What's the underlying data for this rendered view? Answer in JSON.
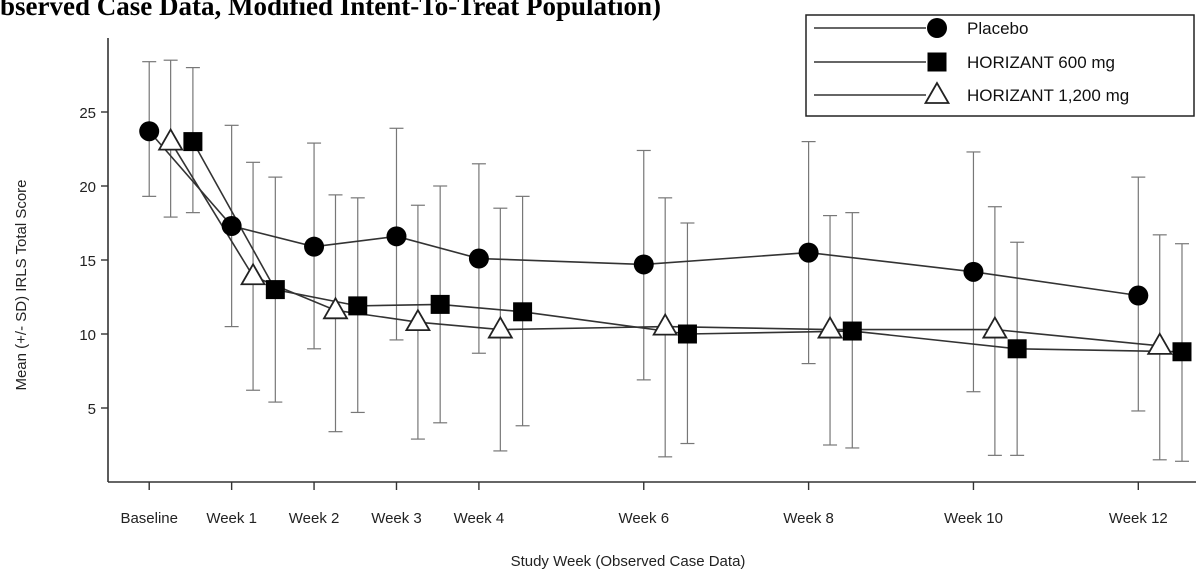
{
  "page": {
    "cut_title": "bserved Case Data, Modified Intent-To-Treat Population)"
  },
  "chart_data": {
    "type": "line",
    "xlabel": "Study Week (Observed Case Data)",
    "ylabel": "Mean (+/- SD) IRLS Total Score",
    "categories": [
      "Baseline",
      "Week 1",
      "Week 2",
      "Week 3",
      "Week 4",
      "Week 6",
      "Week 8",
      "Week 10",
      "Week 12"
    ],
    "x_weeks": [
      0,
      1,
      2,
      3,
      4,
      6,
      8,
      10,
      12
    ],
    "yticks": [
      5,
      10,
      15,
      20,
      25
    ],
    "ylim": [
      0,
      30
    ],
    "xlim": [
      -0.5,
      12.7
    ],
    "grid": false,
    "legend_position": "top-right",
    "series": [
      {
        "name": "Placebo",
        "marker": "circle",
        "offset": 0,
        "values": [
          23.7,
          17.3,
          15.9,
          16.6,
          15.1,
          14.7,
          15.5,
          14.2,
          12.6
        ],
        "sd_upper": [
          28.4,
          24.1,
          22.9,
          23.9,
          21.5,
          22.4,
          23.0,
          22.3,
          20.6
        ],
        "sd_lower": [
          19.3,
          10.5,
          9.0,
          9.6,
          8.7,
          6.9,
          8.0,
          6.1,
          4.8
        ]
      },
      {
        "name": "HORIZANT 600 mg",
        "marker": "square",
        "offset": 0.53,
        "values": [
          23.0,
          13.0,
          11.9,
          12.0,
          11.5,
          10.0,
          10.2,
          9.0,
          8.8
        ],
        "sd_upper": [
          28.0,
          20.6,
          19.2,
          20.0,
          19.3,
          17.5,
          18.2,
          16.2,
          16.1
        ],
        "sd_lower": [
          18.2,
          5.4,
          4.7,
          4.0,
          3.8,
          2.6,
          2.3,
          1.8,
          1.4
        ]
      },
      {
        "name": "HORIZANT 1,200 mg",
        "marker": "triangle",
        "offset": 0.26,
        "values": [
          23.0,
          13.9,
          11.6,
          10.8,
          10.3,
          10.5,
          10.3,
          10.3,
          9.2
        ],
        "sd_upper": [
          28.5,
          21.6,
          19.4,
          18.7,
          18.5,
          19.2,
          18.0,
          18.6,
          16.7
        ],
        "sd_lower": [
          17.9,
          6.2,
          3.4,
          2.9,
          2.1,
          1.7,
          2.5,
          1.8,
          1.5
        ]
      }
    ]
  }
}
